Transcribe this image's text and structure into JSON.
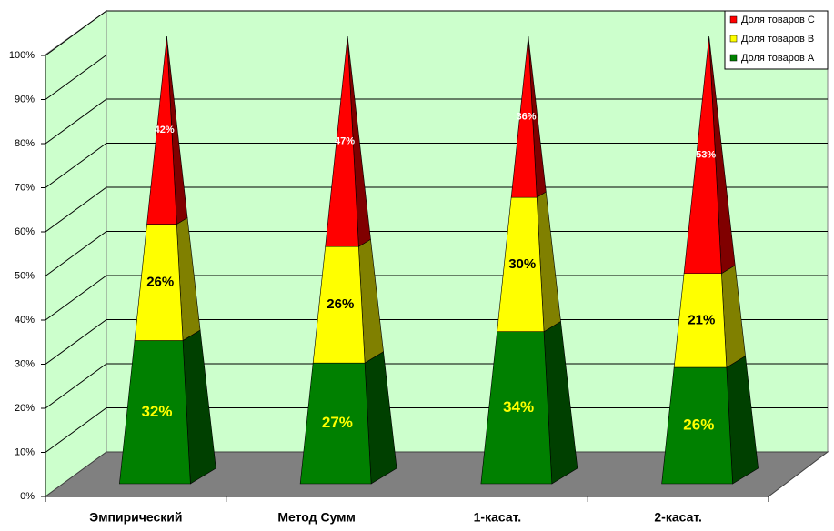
{
  "chart_data": {
    "type": "pyramid100",
    "categories": [
      "Эмпирический",
      "Метод Сумм",
      "1-касат.",
      "2-касат."
    ],
    "series": [
      {
        "name": "Доля товаров A",
        "color": "#008000",
        "shade": "#004000",
        "label_color": "#ffff00",
        "values": [
          32,
          27,
          34,
          26
        ],
        "value_labels": [
          "32%",
          "27%",
          "34%",
          "26%"
        ]
      },
      {
        "name": "Доля товаров B",
        "color": "#ffff00",
        "shade": "#808000",
        "label_color": "#000000",
        "values": [
          26,
          26,
          30,
          21
        ],
        "value_labels": [
          "26%",
          "26%",
          "30%",
          "21%"
        ]
      },
      {
        "name": "Доля товаров C",
        "color": "#ff0000",
        "shade": "#800000",
        "label_color": "#ffffff",
        "values": [
          42,
          47,
          36,
          53
        ],
        "value_labels": [
          "42%",
          "47%",
          "36%",
          "53%"
        ]
      }
    ],
    "ylim": [
      0,
      100
    ],
    "yticks": [
      {
        "value": 0,
        "label": "0%"
      },
      {
        "value": 10,
        "label": "10%"
      },
      {
        "value": 20,
        "label": "20%"
      },
      {
        "value": 30,
        "label": "30%"
      },
      {
        "value": 40,
        "label": "40%"
      },
      {
        "value": 50,
        "label": "50%"
      },
      {
        "value": 60,
        "label": "60%"
      },
      {
        "value": 70,
        "label": "70%"
      },
      {
        "value": 80,
        "label": "80%"
      },
      {
        "value": 90,
        "label": "90%"
      },
      {
        "value": 100,
        "label": "100%"
      }
    ],
    "grid": true,
    "legend": "top-right"
  }
}
